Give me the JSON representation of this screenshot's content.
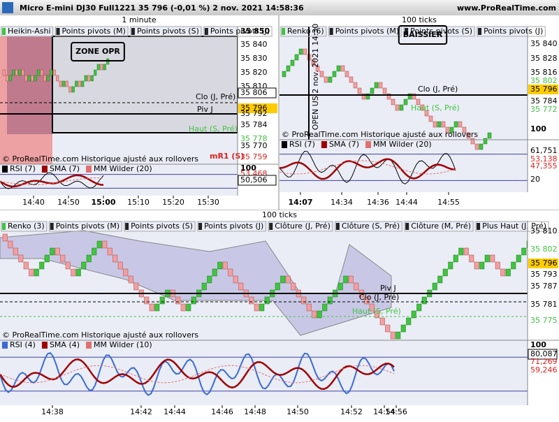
{
  "header": {
    "title": "Micro E-mini DJ30 Full1221 35 796 (-0,01 %) 2 nov. 2021 14:58:36",
    "site": "www.ProRealTime.com"
  },
  "panels": [
    {
      "timeframe": "1 minute",
      "legend": [
        "Heikin-Ashi",
        "Points pivots (M)",
        "Points pivots (S)",
        "Points pivots (J)"
      ],
      "price_labels": [
        "35 850",
        "35 840",
        "35 830",
        "35 820",
        "35 810",
        "35 806",
        "35 796",
        "35 792",
        "35 784",
        "35 778",
        "35 770",
        "35 759"
      ],
      "annotations": [
        "ZONE OPR",
        "Clo (J, Pré)",
        "Piv J",
        "Haut (S, Pré)",
        "mR1 (S)"
      ],
      "watermark": "© ProRealTime.com Historique ajusté aux rollovers",
      "indicator_legend": [
        "RSI (7)",
        "SMA (7)",
        "MM Wilder (20)"
      ],
      "indicator_labels": [
        "100",
        "53,468",
        "50,506"
      ],
      "time_labels": [
        "14:40",
        "14:50",
        "15:00",
        "15:10",
        "15:20",
        "15:30"
      ]
    },
    {
      "timeframe": "100 ticks",
      "legend": [
        "Renko (6)",
        "Points pivots (M)",
        "Points pivots (S)",
        "Points pivots (J)"
      ],
      "price_labels": [
        "35 840",
        "35 828",
        "35 816",
        "35 802",
        "35 796",
        "35 784",
        "35 772"
      ],
      "annotations": [
        "BAISSIER",
        "OPEN US  2 nov. 2021 14:30",
        "Clo (J, Pré)",
        "Haut (S, Pré)"
      ],
      "watermark": "© ProRealTime.com Historique ajusté aux rollovers",
      "indicator_legend": [
        "RSI (7)",
        "SMA (7)",
        "MM Wilder (20)"
      ],
      "indicator_labels": [
        "100",
        "61,751",
        "53,138",
        "47,355",
        "20"
      ],
      "time_labels": [
        "14:07",
        "14:34",
        "14:36",
        "14:44",
        "14:55"
      ]
    },
    {
      "timeframe": "100 ticks",
      "legend": [
        "Renko (3)",
        "Points pivots (M)",
        "Points pivots (S)",
        "Points pivots (J)",
        "Clôture (J, Pré)",
        "Clôture (S, Pré)",
        "Clôture (M, Pré)",
        "Plus Haut (J, Pré)"
      ],
      "price_labels": [
        "35 810",
        "35 802",
        "35 796",
        "35 793",
        "35 787",
        "35 781",
        "35 775"
      ],
      "annotations": [
        "Piv J",
        "Clo (J, Pré)",
        "Haut (S, Pré)"
      ],
      "watermark": "© ProRealTime.com Historique ajusté aux rollovers",
      "indicator_legend": [
        "RSI (4)",
        "SMA (4)",
        "MM Wilder (10)"
      ],
      "indicator_labels": [
        "100",
        "80,087",
        "71,269",
        "59,246"
      ],
      "time_labels": [
        "14:38",
        "14:42",
        "14:44",
        "14:46",
        "14:48",
        "14:50",
        "14:52",
        "14:54",
        "14:56"
      ]
    }
  ]
}
